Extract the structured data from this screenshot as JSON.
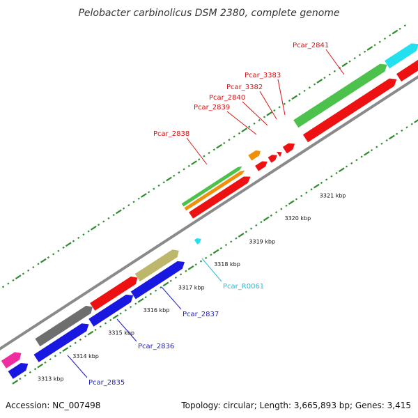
{
  "title": "Pelobacter carbinolicus DSM 2380, complete genome",
  "footer": {
    "accession": "Accession: NC_007498",
    "summary": "Topology: circular; Length: 3,665,893 bp; Genes: 3,415"
  },
  "colors": {
    "backbone": "#8a8a8a",
    "tick": "#2e8b2e",
    "green": "#4cc24c",
    "orange": "#f0900a",
    "red": "#ee1111",
    "blue": "#1818e0",
    "khaki": "#bdb76b",
    "gray": "#6e6e6e",
    "magenta": "#ee2ea0",
    "cyan": "#22e0ee",
    "label_red": "#dd1111",
    "label_blue": "#1a1acc",
    "label_cyan": "#22bbdd"
  },
  "scale_labels": [
    "3313 kbp",
    "3314 kbp",
    "3315 kbp",
    "3316 kbp",
    "3317 kbp",
    "3318 kbp",
    "3319 kbp",
    "3320 kbp",
    "3321 kbp"
  ],
  "gene_labels": [
    {
      "name": "Pcar_2841",
      "color": "label_red"
    },
    {
      "name": "Pcar_3383",
      "color": "label_red"
    },
    {
      "name": "Pcar_3382",
      "color": "label_red"
    },
    {
      "name": "Pcar_2840",
      "color": "label_red"
    },
    {
      "name": "Pcar_2839",
      "color": "label_red"
    },
    {
      "name": "Pcar_2838",
      "color": "label_red"
    },
    {
      "name": "Pcar_R0061",
      "color": "label_cyan"
    },
    {
      "name": "Pcar_2837",
      "color": "label_blue"
    },
    {
      "name": "Pcar_2836",
      "color": "label_blue"
    },
    {
      "name": "Pcar_2835",
      "color": "label_blue"
    }
  ]
}
